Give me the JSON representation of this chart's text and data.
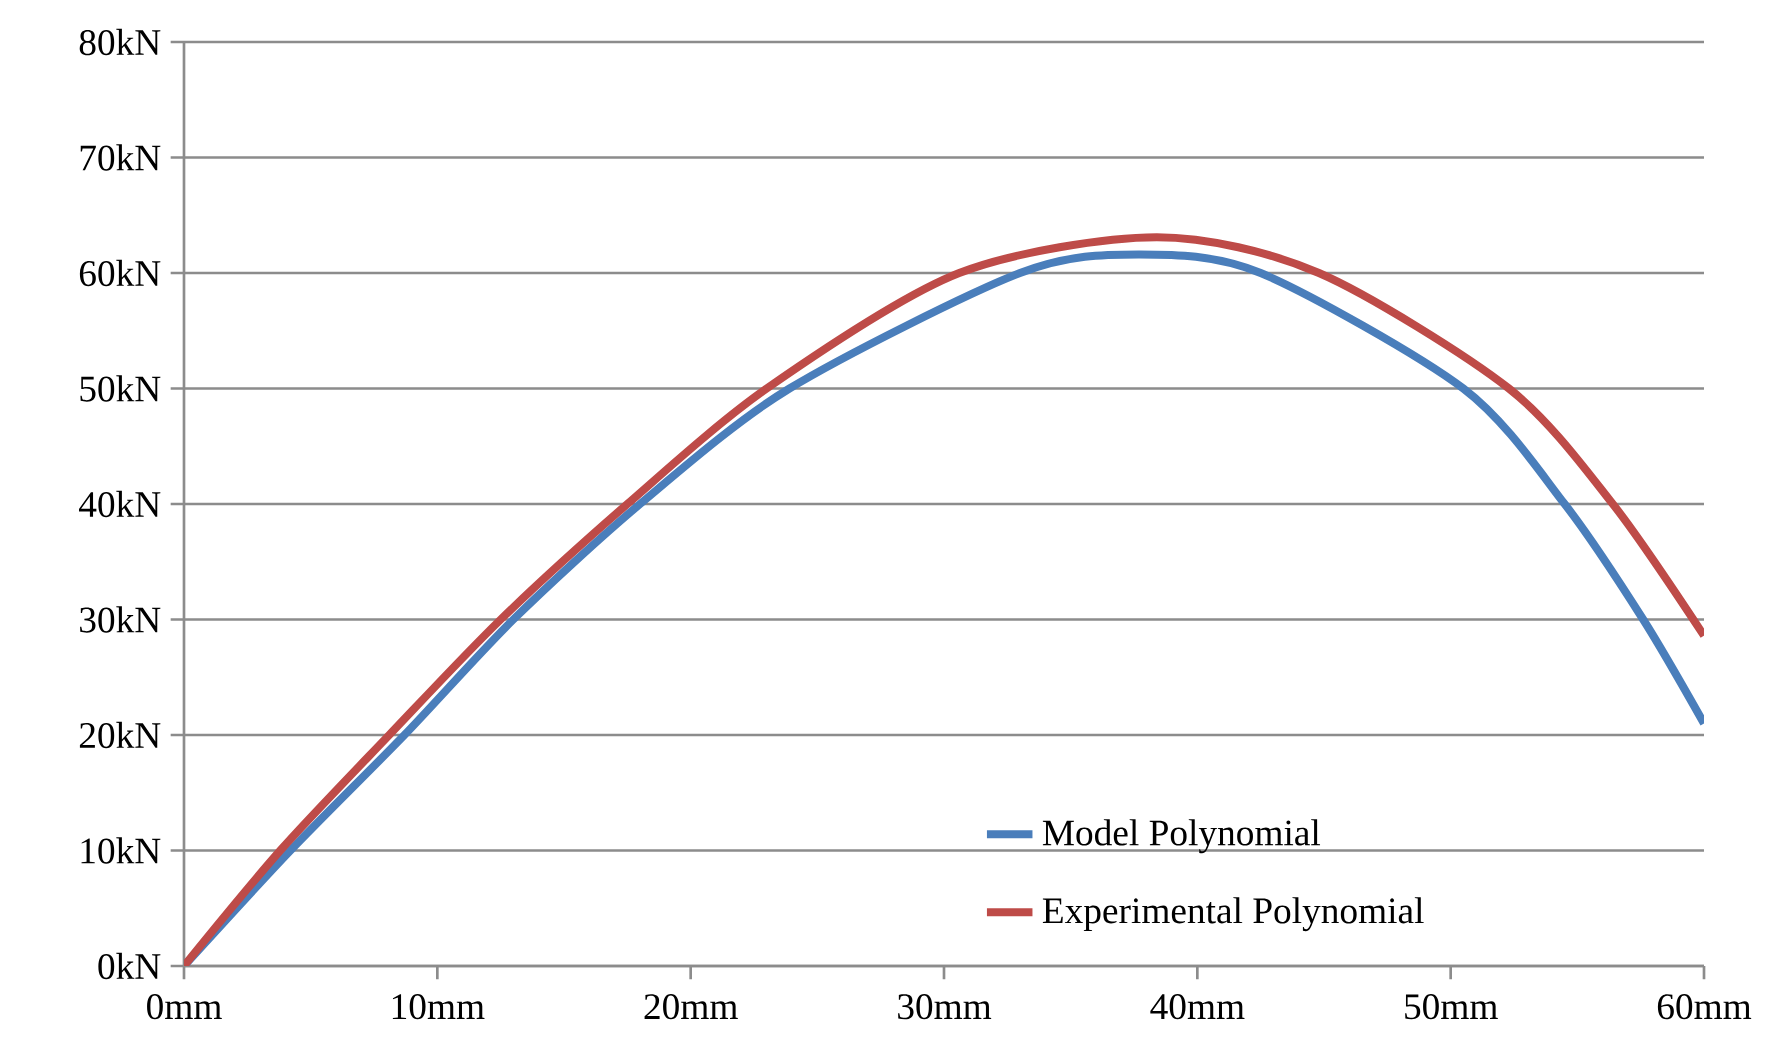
{
  "chart_data": {
    "type": "line",
    "xlim": [
      0,
      60
    ],
    "ylim": [
      0,
      80
    ],
    "xticks": [
      {
        "value": 0,
        "label": "0mm"
      },
      {
        "value": 10,
        "label": "10mm"
      },
      {
        "value": 20,
        "label": "20mm"
      },
      {
        "value": 30,
        "label": "30mm"
      },
      {
        "value": 40,
        "label": "40mm"
      },
      {
        "value": 50,
        "label": "50mm"
      },
      {
        "value": 60,
        "label": "60mm"
      }
    ],
    "yticks": [
      {
        "value": 0,
        "label": "0kN"
      },
      {
        "value": 10,
        "label": "10kN"
      },
      {
        "value": 20,
        "label": "20kN"
      },
      {
        "value": 30,
        "label": "30kN"
      },
      {
        "value": 40,
        "label": "40kN"
      },
      {
        "value": 50,
        "label": "50kN"
      },
      {
        "value": 60,
        "label": "60kN"
      },
      {
        "value": 70,
        "label": "70kN"
      },
      {
        "value": 80,
        "label": "80kN"
      }
    ],
    "grid": "y",
    "legend": "bottom right",
    "marker": "none",
    "line_style": "solid",
    "series": [
      {
        "name": "Model Polynomial",
        "color": "#4a7ebb",
        "x": [
          0,
          4.2,
          8.7,
          13.0,
          18.0,
          23.9,
          33,
          37.7,
          42.5,
          50.5,
          54.5,
          57.6,
          60
        ],
        "values": [
          0,
          10,
          20,
          30,
          40,
          50,
          60,
          61.6,
          60,
          50,
          40,
          30,
          21
        ]
      },
      {
        "name": "Experimental Polynomial",
        "color": "#be4b48",
        "x": [
          0,
          3.8,
          8.1,
          12.5,
          17.5,
          23.0,
          30.6,
          38.4,
          44.8,
          52.3,
          56.4,
          60
        ],
        "values": [
          0,
          10,
          20,
          30,
          40,
          50,
          60,
          63.1,
          60,
          50,
          40,
          28.6
        ]
      }
    ]
  }
}
